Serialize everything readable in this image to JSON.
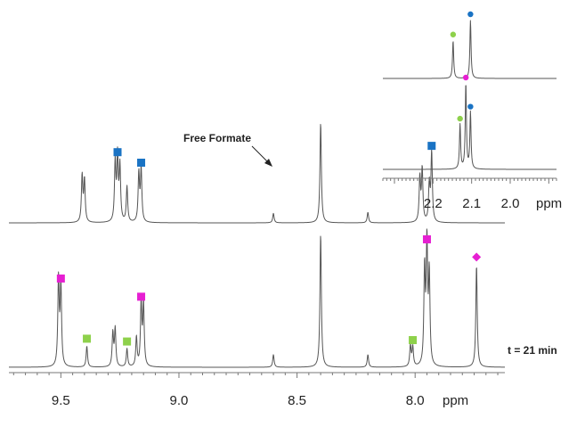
{
  "chart_data": [
    {
      "type": "line",
      "xlabel": "ppm",
      "xlim": [
        9.72,
        7.62
      ],
      "x_ticks": [
        "9.5",
        "9.0",
        "8.5",
        "8.0"
      ],
      "annotations": [
        {
          "text": "Free Formate",
          "ppm": 8.4
        },
        {
          "text": "t = 21 min",
          "series": "lower"
        }
      ],
      "series": [
        {
          "peaks": [
            {
              "ppm": 9.41,
              "height": 0.44
            },
            {
              "ppm": 9.4,
              "height": 0.4
            },
            {
              "ppm": 9.27,
              "height": 0.56
            },
            {
              "ppm": 9.26,
              "height": 0.6,
              "marker": "square",
              "color": "#1a73c4"
            },
            {
              "ppm": 9.25,
              "height": 0.52
            },
            {
              "ppm": 9.22,
              "height": 0.34
            },
            {
              "ppm": 9.17,
              "height": 0.46
            },
            {
              "ppm": 9.16,
              "height": 0.5,
              "marker": "square",
              "color": "#1a73c4"
            },
            {
              "ppm": 8.6,
              "height": 0.09
            },
            {
              "ppm": 8.4,
              "height": 0.95
            },
            {
              "ppm": 8.2,
              "height": 0.1
            },
            {
              "ppm": 7.98,
              "height": 0.42
            },
            {
              "ppm": 7.97,
              "height": 0.5
            },
            {
              "ppm": 7.94,
              "height": 0.36
            },
            {
              "ppm": 7.93,
              "height": 0.66,
              "marker": "square",
              "color": "#1a73c4"
            }
          ]
        },
        {
          "name": "t = 21 min",
          "peaks": [
            {
              "ppm": 9.51,
              "height": 0.62
            },
            {
              "ppm": 9.5,
              "height": 0.58,
              "marker": "square",
              "color": "#e61fd2"
            },
            {
              "ppm": 9.39,
              "height": 0.15,
              "marker": "square",
              "color": "#8ed14b"
            },
            {
              "ppm": 9.28,
              "height": 0.24
            },
            {
              "ppm": 9.27,
              "height": 0.27
            },
            {
              "ppm": 9.22,
              "height": 0.13,
              "marker": "square",
              "color": "#8ed14b"
            },
            {
              "ppm": 9.18,
              "height": 0.21
            },
            {
              "ppm": 9.16,
              "height": 0.45,
              "marker": "square",
              "color": "#e61fd2"
            },
            {
              "ppm": 9.15,
              "height": 0.44
            },
            {
              "ppm": 8.6,
              "height": 0.09
            },
            {
              "ppm": 8.4,
              "height": 0.95
            },
            {
              "ppm": 8.2,
              "height": 0.09
            },
            {
              "ppm": 8.02,
              "height": 0.15
            },
            {
              "ppm": 8.01,
              "height": 0.14,
              "marker": "square",
              "color": "#8ed14b"
            },
            {
              "ppm": 7.96,
              "height": 0.68
            },
            {
              "ppm": 7.95,
              "height": 0.86,
              "marker": "square",
              "color": "#e61fd2"
            },
            {
              "ppm": 7.94,
              "height": 0.64
            },
            {
              "ppm": 7.74,
              "height": 0.73,
              "marker": "diamond",
              "color": "#e61fd2"
            }
          ]
        }
      ]
    },
    {
      "type": "line",
      "xlabel": "ppm",
      "xlim": [
        2.33,
        1.88
      ],
      "x_ticks": [
        "2.2",
        "2.1",
        "2.0"
      ],
      "series": [
        {
          "peaks": [
            {
              "ppm": 2.148,
              "height": 0.65,
              "marker": "circle",
              "color": "#8ed14b"
            },
            {
              "ppm": 2.103,
              "height": 1.0,
              "marker": "circle",
              "color": "#1a73c4"
            }
          ]
        },
        {
          "peaks": [
            {
              "ppm": 2.13,
              "height": 0.52,
              "marker": "circle",
              "color": "#8ed14b"
            },
            {
              "ppm": 2.115,
              "height": 1.0,
              "marker": "circle",
              "color": "#e61fd2"
            },
            {
              "ppm": 2.103,
              "height": 0.66,
              "marker": "circle",
              "color": "#1a73c4"
            }
          ]
        }
      ]
    }
  ]
}
